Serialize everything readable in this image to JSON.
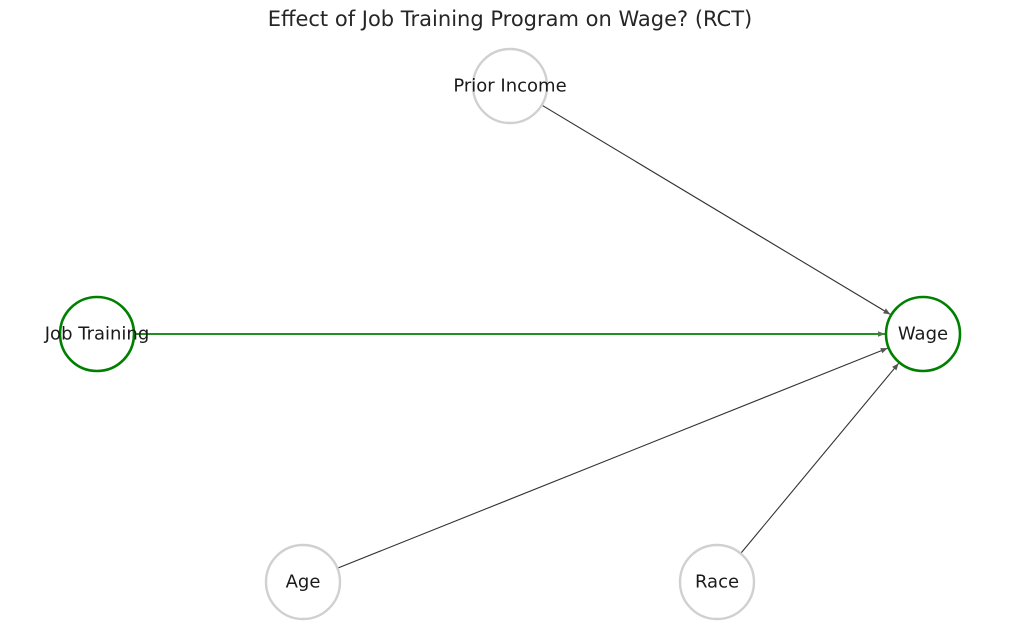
{
  "title": "Effect of Job Training Program on Wage? (RCT)",
  "colors": {
    "highlight": "#008000",
    "neutral_node": "#d0d0d0",
    "neutral_edge": "#333333",
    "text": "#1a1a1a"
  },
  "nodes": [
    {
      "id": "prior_income",
      "label": "Prior Income",
      "highlight": false
    },
    {
      "id": "job_training",
      "label": "Job Training",
      "highlight": true
    },
    {
      "id": "wage",
      "label": "Wage",
      "highlight": true
    },
    {
      "id": "age",
      "label": "Age",
      "highlight": false
    },
    {
      "id": "race",
      "label": "Race",
      "highlight": false
    }
  ],
  "edges": [
    {
      "from": "prior_income",
      "to": "wage",
      "highlight": false
    },
    {
      "from": "job_training",
      "to": "wage",
      "highlight": true
    },
    {
      "from": "age",
      "to": "wage",
      "highlight": false
    },
    {
      "from": "race",
      "to": "wage",
      "highlight": false
    }
  ]
}
